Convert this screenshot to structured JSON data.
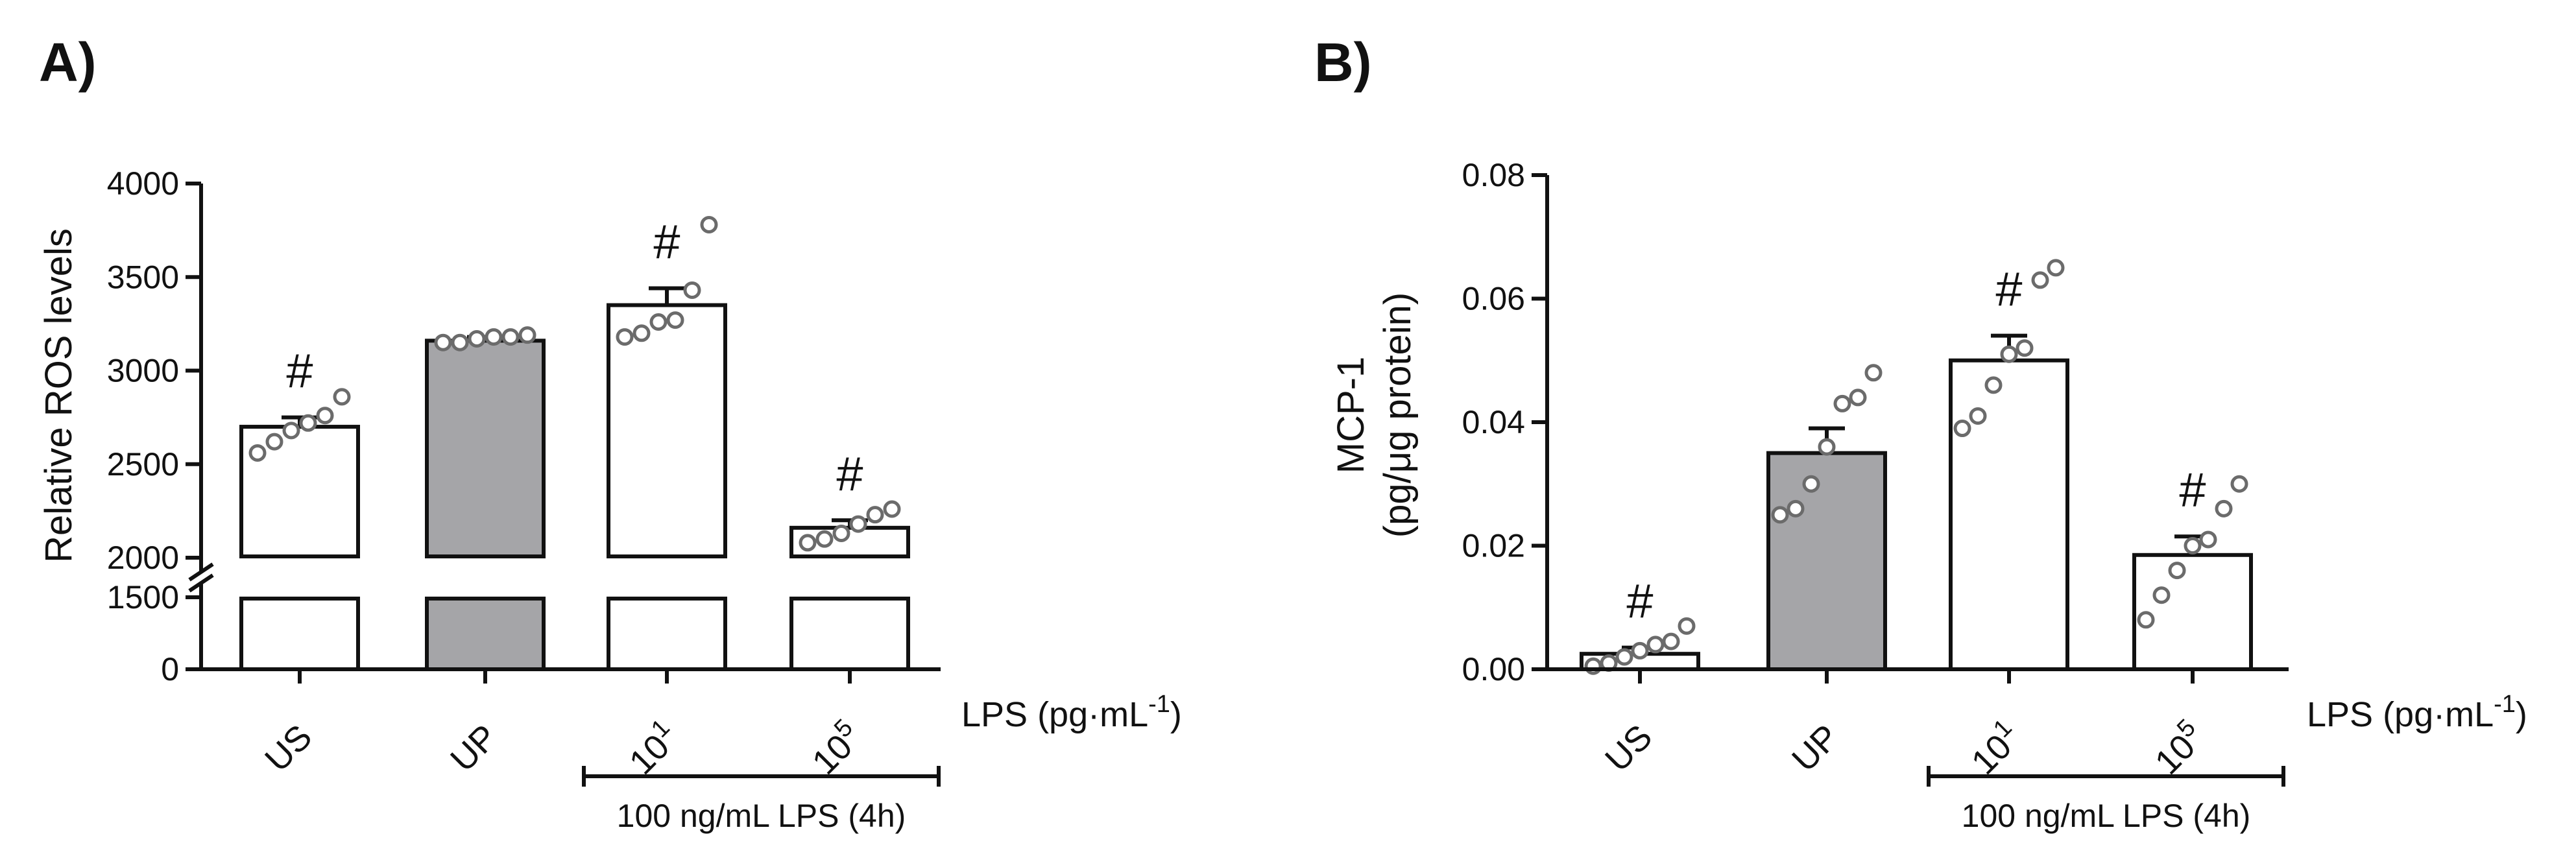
{
  "chart_data": [
    {
      "type": "bar",
      "panel_label": "A)",
      "ylabel": "Relative ROS levels",
      "ylim": [
        0,
        4000
      ],
      "axis_break": [
        1500,
        2000
      ],
      "yticks": [
        0,
        1500,
        2000,
        2500,
        3000,
        3500,
        4000
      ],
      "ytick_labels": [
        "0",
        "1500",
        "2000",
        "2500",
        "3000",
        "3500",
        "4000"
      ],
      "categories": [
        {
          "base": "US",
          "sup": ""
        },
        {
          "base": "UP",
          "sup": ""
        },
        {
          "base": "10",
          "sup": "1"
        },
        {
          "base": "10",
          "sup": "5"
        }
      ],
      "values": [
        2700,
        3160,
        3350,
        2160
      ],
      "errors": [
        50,
        20,
        90,
        40
      ],
      "bar_colors": [
        "#ffffff",
        "#a5a5a8",
        "#ffffff",
        "#ffffff"
      ],
      "significance": [
        "#",
        "",
        "#",
        "#"
      ],
      "points": [
        [
          2560,
          2620,
          2680,
          2720,
          2760,
          2860
        ],
        [
          3150,
          3150,
          3170,
          3180,
          3180,
          3190
        ],
        [
          3180,
          3200,
          3260,
          3270,
          3430,
          3780
        ],
        [
          2080,
          2100,
          2130,
          2180,
          2230,
          2260
        ]
      ],
      "xunit": {
        "text": "LPS (pg·mL",
        "sup": "-1",
        "close": ")"
      },
      "bracket_label": "100 ng/mL LPS (4h)"
    },
    {
      "type": "bar",
      "panel_label": "B)",
      "ylabel_line1": "MCP-1",
      "ylabel_line2": "(pg/μg protein)",
      "ylim": [
        0,
        0.08
      ],
      "yticks": [
        0,
        0.02,
        0.04,
        0.06,
        0.08
      ],
      "ytick_labels": [
        "0.00",
        "0.02",
        "0.04",
        "0.06",
        "0.08"
      ],
      "categories": [
        {
          "base": "US",
          "sup": ""
        },
        {
          "base": "UP",
          "sup": ""
        },
        {
          "base": "10",
          "sup": "1"
        },
        {
          "base": "10",
          "sup": "5"
        }
      ],
      "values": [
        0.0025,
        0.035,
        0.05,
        0.0185
      ],
      "errors": [
        0.001,
        0.004,
        0.004,
        0.003
      ],
      "bar_colors": [
        "#ffffff",
        "#a5a5a8",
        "#ffffff",
        "#ffffff"
      ],
      "significance": [
        "#",
        "",
        "#",
        "#"
      ],
      "points": [
        [
          0.0005,
          0.001,
          0.002,
          0.003,
          0.004,
          0.0045,
          0.007
        ],
        [
          0.025,
          0.026,
          0.03,
          0.036,
          0.043,
          0.044,
          0.048
        ],
        [
          0.039,
          0.041,
          0.046,
          0.051,
          0.052,
          0.063,
          0.065
        ],
        [
          0.008,
          0.012,
          0.016,
          0.02,
          0.021,
          0.026,
          0.03
        ]
      ],
      "xunit": {
        "text": "LPS (pg·mL",
        "sup": "-1",
        "close": ")"
      },
      "bracket_label": "100 ng/mL LPS (4h)"
    }
  ]
}
